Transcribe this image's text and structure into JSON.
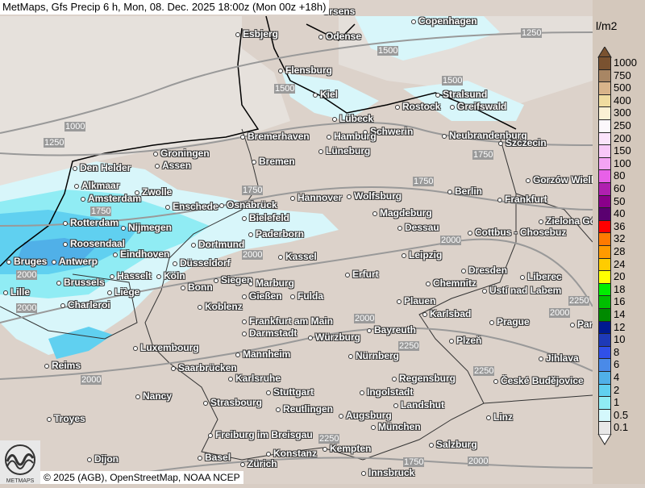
{
  "title": "MetMaps, Gfs Precip 6 h, Mon, 08. Dec. 2025 18:00z (Mon 00z +18h)",
  "credit": "© 2025 (AGB), OpenStreetMap, NOAA NCEP",
  "logo_text": "METMAPS",
  "legend": {
    "unit": "l/m2",
    "levels": [
      {
        "label": "1000",
        "color": "#7a5230"
      },
      {
        "label": "750",
        "color": "#a88664"
      },
      {
        "label": "500",
        "color": "#d9b48a"
      },
      {
        "label": "400",
        "color": "#f0dca0"
      },
      {
        "label": "300",
        "color": "#faf0d4"
      },
      {
        "label": "250",
        "color": "#fcf8fc"
      },
      {
        "label": "200",
        "color": "#fbe4fb"
      },
      {
        "label": "150",
        "color": "#f8c8f8"
      },
      {
        "label": "100",
        "color": "#f4a4f4"
      },
      {
        "label": "80",
        "color": "#e860e8"
      },
      {
        "label": "60",
        "color": "#b020b0"
      },
      {
        "label": "50",
        "color": "#8a008a"
      },
      {
        "label": "40",
        "color": "#5a0070"
      },
      {
        "label": "36",
        "color": "#ff0000"
      },
      {
        "label": "32",
        "color": "#ff7a00"
      },
      {
        "label": "28",
        "color": "#ff9a00"
      },
      {
        "label": "24",
        "color": "#ffcc00"
      },
      {
        "label": "20",
        "color": "#ffff00"
      },
      {
        "label": "18",
        "color": "#00ee00"
      },
      {
        "label": "16",
        "color": "#00c000"
      },
      {
        "label": "14",
        "color": "#008a00"
      },
      {
        "label": "12",
        "color": "#001a90"
      },
      {
        "label": "10",
        "color": "#1e3ab8"
      },
      {
        "label": "8",
        "color": "#3050e8"
      },
      {
        "label": "6",
        "color": "#4a8ae8"
      },
      {
        "label": "4",
        "color": "#50b0e8"
      },
      {
        "label": "2",
        "color": "#60d0f0"
      },
      {
        "label": "1",
        "color": "#90ecf4"
      },
      {
        "label": "0.5",
        "color": "#d4f8fc"
      },
      {
        "label": "0.1",
        "color": "#e8e8e8"
      }
    ]
  },
  "cities": [
    "orsens",
    "Copenhagen",
    "Esbjerg",
    "Odense",
    "Flensburg",
    "Kiel",
    "Stralsund",
    "Rostock",
    "Greifswald",
    "Lübeck",
    "Schwerin",
    "Neubrandenburg",
    "Szczecin",
    "Bremerhaven",
    "Hamburg",
    "Groningen",
    "Lüneburg",
    "Assen",
    "Bremen",
    "Den Helder",
    "Gorzów Wielkopolski",
    "Alkmaar",
    "Zwolle",
    "Berlin",
    "Amsterdam",
    "Frankfurt",
    "Hannover",
    "Wolfsburg",
    "Enschede",
    "Osnabrück",
    "Magdeburg",
    "Bielefeld",
    "Rotterdam",
    "Nijmegen",
    "Zielona Góra",
    "Dessau",
    "Paderborn",
    "Cottbus - Chosebuz",
    "Roosendaal",
    "Dortmund",
    "Eindhoven",
    "Bruges",
    "Antwerp",
    "Düsseldorf",
    "Kassel",
    "Leipzig",
    "Dresden",
    "Erfurt",
    "Köln",
    "Hasselt",
    "Brussels",
    "Siegen",
    "Marburg",
    "Chemnitz",
    "Liberec",
    "Bonn",
    "Ústí nad Labem",
    "Liège",
    "Gießen",
    "Fulda",
    "Lille",
    "Plauen",
    "Charleroi",
    "Koblenz",
    "Karlsbad",
    "Frankfurt am Main",
    "Prague",
    "Pardubice",
    "Darmstadt",
    "Würzburg",
    "Bayreuth",
    "Plzeň",
    "Luxembourg",
    "Mannheim",
    "Nürnberg",
    "Jihlava",
    "Reims",
    "Saarbrücken",
    "Regensburg",
    "České Budějovice",
    "Karlsruhe",
    "Stuttgart",
    "Ingolstadt",
    "Nancy",
    "Landshut",
    "Strasbourg",
    "Reutlingen",
    "Augsburg",
    "Linz",
    "Troyes",
    "München",
    "Freiburg im Breisgau",
    "Kempten",
    "Salzburg",
    "Konstanz",
    "Basel",
    "Zürich",
    "Innsbruck",
    "Dijon"
  ],
  "contour_labels": [
    "1250",
    "1500",
    "1500",
    "1500",
    "1000",
    "1250",
    "1750",
    "1750",
    "1750",
    "1750",
    "2000",
    "2000",
    "2000",
    "2000",
    "2000",
    "2000",
    "2250",
    "2250",
    "2000",
    "2250",
    "1750",
    "2000",
    "2250"
  ]
}
